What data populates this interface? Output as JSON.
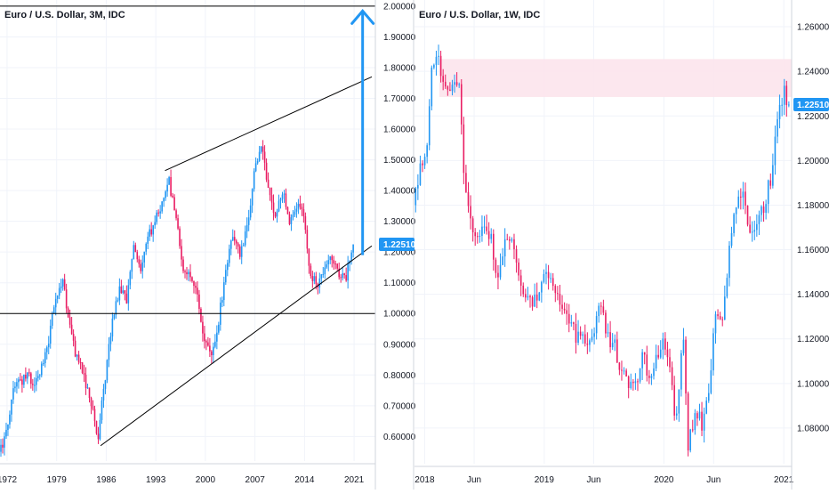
{
  "colors": {
    "up": "#2196f3",
    "down": "#e91e63",
    "grid": "#f0f3fa",
    "axis": "#d1d4dc",
    "line": "#000000",
    "arrow": "#2196f3",
    "zone": "#fce4ec",
    "label_bg": "#2196f3"
  },
  "chart_data": [
    {
      "type": "candlestick",
      "title": "Euro / U.S. Dollar, 3M, IDC",
      "x_ticks": [
        "1972",
        "1979",
        "1986",
        "1993",
        "2000",
        "2007",
        "2014",
        "2021"
      ],
      "x_range": [
        1971,
        2024
      ],
      "y_ticks": [
        "0.60000",
        "0.70000",
        "0.80000",
        "0.90000",
        "1.00000",
        "1.10000",
        "1.20000",
        "1.30000",
        "1.40000",
        "1.50000",
        "1.60000",
        "1.70000",
        "1.80000",
        "1.90000",
        "2.00000"
      ],
      "y_range": [
        0.52,
        2.02
      ],
      "last_price": "1.22510",
      "last_price_value": 1.2251,
      "grid": true,
      "price_path": [
        [
          1971.0,
          0.55
        ],
        [
          1972.0,
          0.61
        ],
        [
          1973.0,
          0.75
        ],
        [
          1974.0,
          0.78
        ],
        [
          1975.0,
          0.8
        ],
        [
          1976.0,
          0.76
        ],
        [
          1977.0,
          0.82
        ],
        [
          1978.0,
          0.92
        ],
        [
          1979.0,
          1.05
        ],
        [
          1980.0,
          1.1
        ],
        [
          1981.0,
          0.95
        ],
        [
          1982.0,
          0.85
        ],
        [
          1983.0,
          0.8
        ],
        [
          1984.0,
          0.7
        ],
        [
          1985.0,
          0.6
        ],
        [
          1986.0,
          0.8
        ],
        [
          1987.0,
          0.98
        ],
        [
          1988.0,
          1.08
        ],
        [
          1989.0,
          1.05
        ],
        [
          1990.0,
          1.22
        ],
        [
          1991.0,
          1.12
        ],
        [
          1992.0,
          1.25
        ],
        [
          1993.0,
          1.3
        ],
        [
          1994.0,
          1.35
        ],
        [
          1995.0,
          1.43
        ],
        [
          1996.0,
          1.3
        ],
        [
          1997.0,
          1.15
        ],
        [
          1998.0,
          1.12
        ],
        [
          1999.0,
          1.06
        ],
        [
          2000.0,
          0.9
        ],
        [
          2001.0,
          0.86
        ],
        [
          2002.0,
          0.98
        ],
        [
          2003.0,
          1.14
        ],
        [
          2004.0,
          1.26
        ],
        [
          2005.0,
          1.2
        ],
        [
          2006.0,
          1.27
        ],
        [
          2007.0,
          1.45
        ],
        [
          2008.0,
          1.55
        ],
        [
          2009.0,
          1.4
        ],
        [
          2010.0,
          1.32
        ],
        [
          2011.0,
          1.4
        ],
        [
          2012.0,
          1.3
        ],
        [
          2013.0,
          1.35
        ],
        [
          2014.0,
          1.33
        ],
        [
          2015.0,
          1.11
        ],
        [
          2016.0,
          1.1
        ],
        [
          2017.0,
          1.15
        ],
        [
          2018.0,
          1.18
        ],
        [
          2019.0,
          1.12
        ],
        [
          2020.0,
          1.12
        ],
        [
          2021.0,
          1.2251
        ]
      ],
      "annotations": {
        "horizontal_lines": [
          1.0,
          2.0
        ],
        "channel_upper": [
          [
            1994.3,
            1.465
          ],
          [
            2023.5,
            1.77
          ]
        ],
        "channel_lower": [
          [
            1985.2,
            0.57
          ],
          [
            2023.5,
            1.22
          ]
        ],
        "arrow": {
          "x": 2022.2,
          "from": 1.19,
          "to": 1.99
        }
      }
    },
    {
      "type": "candlestick",
      "title": "Euro / U.S. Dollar, 1W, IDC",
      "x_ticks": [
        "2018",
        "Jun",
        "2019",
        "Jun",
        "2020",
        "Jun",
        "2021"
      ],
      "x_range": [
        "2017-12-01",
        "2021-01-25"
      ],
      "y_ticks": [
        "1.08000",
        "1.10000",
        "1.12000",
        "1.14000",
        "1.16000",
        "1.18000",
        "1.20000",
        "1.22000",
        "1.24000",
        "1.26000"
      ],
      "y_range": [
        1.064,
        1.272
      ],
      "last_price": "1.22510",
      "last_price_value": 1.2251,
      "grid": true,
      "zone": {
        "y_from": 1.2285,
        "y_to": 1.2455,
        "x_from": "2018-02-15",
        "x_to": "2021-01-25"
      },
      "price_path": [
        [
          "2017-12-01",
          1.18
        ],
        [
          "2017-12-20",
          1.195
        ],
        [
          "2018-01-10",
          1.205
        ],
        [
          "2018-01-24",
          1.24
        ],
        [
          "2018-02-14",
          1.245
        ],
        [
          "2018-03-07",
          1.235
        ],
        [
          "2018-03-28",
          1.232
        ],
        [
          "2018-04-18",
          1.236
        ],
        [
          "2018-05-02",
          1.2
        ],
        [
          "2018-05-23",
          1.172
        ],
        [
          "2018-06-13",
          1.168
        ],
        [
          "2018-07-04",
          1.168
        ],
        [
          "2018-07-25",
          1.168
        ],
        [
          "2018-08-15",
          1.143
        ],
        [
          "2018-09-05",
          1.162
        ],
        [
          "2018-09-26",
          1.168
        ],
        [
          "2018-10-17",
          1.15
        ],
        [
          "2018-11-07",
          1.138
        ],
        [
          "2018-11-28",
          1.134
        ],
        [
          "2018-12-19",
          1.14
        ],
        [
          "2019-01-09",
          1.148
        ],
        [
          "2019-01-30",
          1.145
        ],
        [
          "2019-02-20",
          1.135
        ],
        [
          "2019-03-13",
          1.132
        ],
        [
          "2019-04-03",
          1.124
        ],
        [
          "2019-04-24",
          1.118
        ],
        [
          "2019-05-15",
          1.12
        ],
        [
          "2019-06-05",
          1.125
        ],
        [
          "2019-06-26",
          1.136
        ],
        [
          "2019-07-17",
          1.12
        ],
        [
          "2019-08-07",
          1.118
        ],
        [
          "2019-08-28",
          1.104
        ],
        [
          "2019-09-18",
          1.1
        ],
        [
          "2019-10-09",
          1.098
        ],
        [
          "2019-10-30",
          1.115
        ],
        [
          "2019-11-20",
          1.102
        ],
        [
          "2019-12-11",
          1.112
        ],
        [
          "2020-01-01",
          1.12
        ],
        [
          "2020-01-22",
          1.105
        ],
        [
          "2020-02-12",
          1.082
        ],
        [
          "2020-03-04",
          1.125
        ],
        [
          "2020-03-18",
          1.07
        ],
        [
          "2020-04-08",
          1.088
        ],
        [
          "2020-04-29",
          1.082
        ],
        [
          "2020-05-20",
          1.098
        ],
        [
          "2020-06-10",
          1.13
        ],
        [
          "2020-07-01",
          1.125
        ],
        [
          "2020-07-22",
          1.162
        ],
        [
          "2020-08-12",
          1.18
        ],
        [
          "2020-09-02",
          1.185
        ],
        [
          "2020-09-23",
          1.168
        ],
        [
          "2020-10-14",
          1.172
        ],
        [
          "2020-11-04",
          1.18
        ],
        [
          "2020-11-25",
          1.192
        ],
        [
          "2020-12-16",
          1.22
        ],
        [
          "2021-01-06",
          1.23
        ],
        [
          "2021-01-20",
          1.2251
        ]
      ]
    }
  ]
}
